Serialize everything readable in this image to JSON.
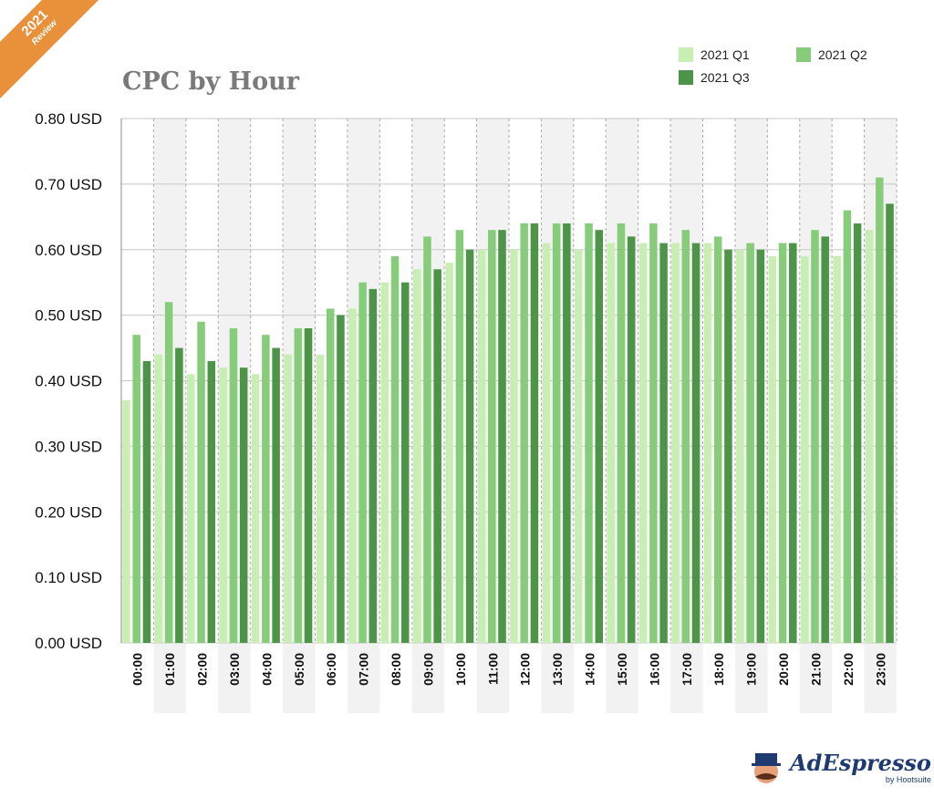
{
  "badge": {
    "year": "2021",
    "label": "Review"
  },
  "logo": {
    "name": "AdEspresso",
    "sub": "by Hootsuite"
  },
  "chart_data": {
    "type": "bar",
    "title": "CPC by Hour",
    "categories": [
      "00:00",
      "01:00",
      "02:00",
      "03:00",
      "04:00",
      "05:00",
      "06:00",
      "07:00",
      "08:00",
      "09:00",
      "10:00",
      "11:00",
      "12:00",
      "13:00",
      "14:00",
      "15:00",
      "16:00",
      "17:00",
      "18:00",
      "19:00",
      "20:00",
      "21:00",
      "22:00",
      "23:00"
    ],
    "series": [
      {
        "name": "2021 Q1",
        "color": "#c8eeb4",
        "values": [
          0.37,
          0.44,
          0.41,
          0.42,
          0.41,
          0.44,
          0.44,
          0.51,
          0.55,
          0.57,
          0.58,
          0.6,
          0.6,
          0.61,
          0.6,
          0.61,
          0.61,
          0.61,
          0.61,
          0.6,
          0.59,
          0.59,
          0.59,
          0.63
        ]
      },
      {
        "name": "2021 Q2",
        "color": "#86cc7a",
        "values": [
          0.47,
          0.52,
          0.49,
          0.48,
          0.47,
          0.48,
          0.51,
          0.55,
          0.59,
          0.62,
          0.63,
          0.63,
          0.64,
          0.64,
          0.64,
          0.64,
          0.64,
          0.63,
          0.62,
          0.61,
          0.61,
          0.63,
          0.66,
          0.71
        ]
      },
      {
        "name": "2021 Q3",
        "color": "#4e9448",
        "values": [
          0.43,
          0.45,
          0.43,
          0.42,
          0.45,
          0.48,
          0.5,
          0.54,
          0.55,
          0.57,
          0.6,
          0.63,
          0.64,
          0.64,
          0.63,
          0.62,
          0.61,
          0.61,
          0.6,
          0.6,
          0.61,
          0.62,
          0.64,
          0.67
        ]
      }
    ],
    "yticks": [
      "0.00 USD",
      "0.10 USD",
      "0.20 USD",
      "0.30 USD",
      "0.40 USD",
      "0.50 USD",
      "0.60 USD",
      "0.70 USD",
      "0.80 USD"
    ],
    "ylim": [
      0,
      0.8
    ],
    "grid": true,
    "legend": "top-right"
  }
}
